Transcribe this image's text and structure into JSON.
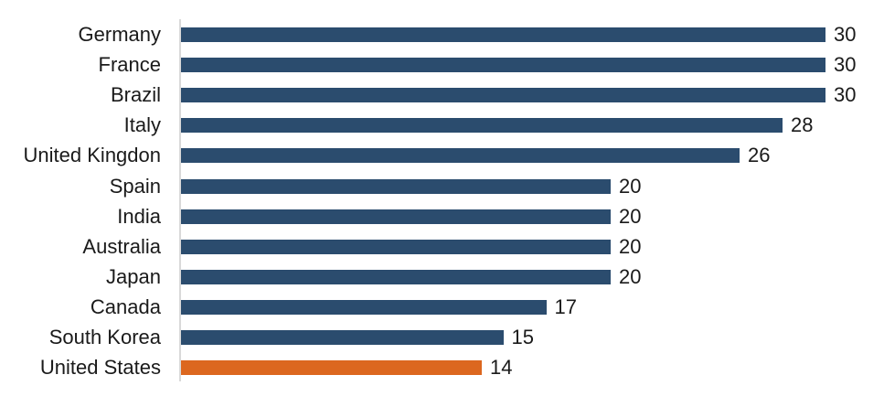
{
  "chart_data": {
    "type": "bar",
    "orientation": "horizontal",
    "title": "",
    "xlabel": "",
    "ylabel": "",
    "grid": false,
    "legend": "none",
    "xlim": [
      0,
      30
    ],
    "categories": [
      "Germany",
      "France",
      "Brazil",
      "Italy",
      "United Kingdon",
      "Spain",
      "India",
      "Australia",
      "Japan",
      "Canada",
      "South Korea",
      "United States"
    ],
    "values": [
      30,
      30,
      30,
      28,
      26,
      20,
      20,
      20,
      20,
      17,
      15,
      14
    ],
    "data_labels": [
      "30",
      "30",
      "30",
      "28",
      "26",
      "20",
      "20",
      "20",
      "20",
      "17",
      "15",
      "14"
    ],
    "highlighted_category": "United States",
    "colors": {
      "bar": "#2b4c6e",
      "highlight": "#dc671f",
      "axis_line": "#d9d9d9",
      "text": "#1a1a1a",
      "background": "#ffffff"
    }
  }
}
